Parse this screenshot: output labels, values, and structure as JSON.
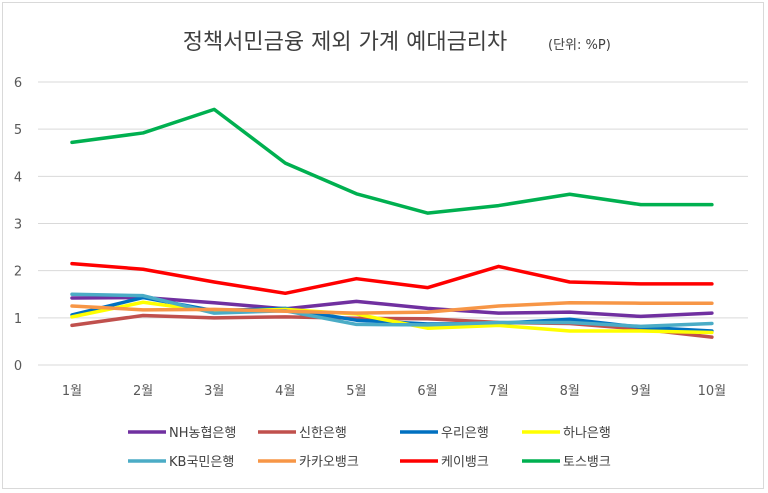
{
  "chart_data": {
    "type": "line",
    "title": "정책서민금융 제외 가계 예대금리차",
    "subtitle": "(단위: %P)",
    "categories": [
      "1월",
      "2월",
      "3월",
      "4월",
      "5월",
      "6월",
      "7월",
      "8월",
      "9월",
      "10월"
    ],
    "ylim": [
      0,
      6
    ],
    "yticks": [
      "0",
      "1",
      "2",
      "3",
      "4",
      "5",
      "6"
    ],
    "grid": true,
    "legend_placement": "bottom",
    "series": [
      {
        "name": "NH농협은행",
        "color": "#7030a0",
        "values": [
          1.42,
          1.43,
          1.32,
          1.19,
          1.35,
          1.2,
          1.1,
          1.12,
          1.03,
          1.1
        ]
      },
      {
        "name": "신한은행",
        "color": "#c0504d",
        "values": [
          0.84,
          1.05,
          1.0,
          1.02,
          0.99,
          0.98,
          0.9,
          0.88,
          0.76,
          0.59
        ]
      },
      {
        "name": "우리은행",
        "color": "#0070c0",
        "values": [
          1.06,
          1.43,
          1.15,
          1.2,
          0.95,
          0.87,
          0.88,
          0.97,
          0.8,
          0.72
        ]
      },
      {
        "name": "하나은행",
        "color": "#ffff00",
        "values": [
          1.02,
          1.33,
          1.13,
          1.18,
          1.08,
          0.78,
          0.84,
          0.72,
          0.72,
          0.69
        ]
      },
      {
        "name": "KB국민은행",
        "color": "#4bacc6",
        "values": [
          1.5,
          1.47,
          1.1,
          1.15,
          0.86,
          0.85,
          0.9,
          0.9,
          0.82,
          0.88
        ]
      },
      {
        "name": "카카오뱅크",
        "color": "#f79646",
        "values": [
          1.25,
          1.17,
          1.18,
          1.14,
          1.1,
          1.12,
          1.25,
          1.32,
          1.31,
          1.31
        ]
      },
      {
        "name": "케이뱅크",
        "color": "#ff0000",
        "values": [
          2.15,
          2.03,
          1.76,
          1.52,
          1.83,
          1.64,
          2.09,
          1.76,
          1.72,
          1.72
        ]
      },
      {
        "name": "토스뱅크",
        "color": "#00b050",
        "values": [
          4.72,
          4.92,
          5.42,
          4.28,
          3.63,
          3.22,
          3.38,
          3.62,
          3.4,
          3.4
        ]
      }
    ]
  }
}
